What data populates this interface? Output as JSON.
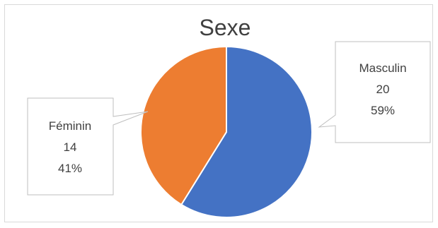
{
  "chart_data": {
    "type": "pie",
    "title": "Sexe",
    "slices": [
      {
        "label": "Masculin",
        "value": 20,
        "percent": "59%",
        "color": "#4472c4"
      },
      {
        "label": "Féminin",
        "value": 14,
        "percent": "41%",
        "color": "#ed7d31"
      }
    ],
    "data_labels": "callouts with category, value and percentage",
    "legend": "none"
  }
}
